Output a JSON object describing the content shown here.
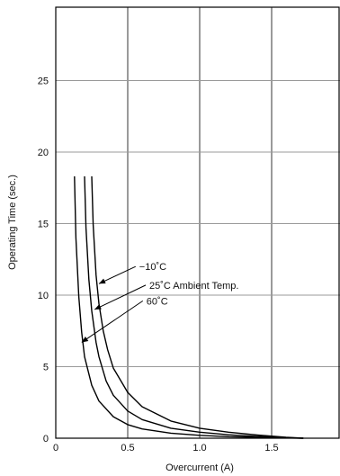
{
  "chart_data": {
    "type": "line",
    "title": "",
    "xlabel": "Overcurrent (A)",
    "ylabel": "Operating Time (sec.)",
    "xlim": [
      0,
      2.0
    ],
    "ylim": [
      0,
      30
    ],
    "x_ticks": [
      0,
      0.5,
      1.0,
      1.5
    ],
    "x_tick_labels": [
      "0",
      "0.5",
      "1.0",
      "1.5"
    ],
    "y_ticks": [
      0,
      5,
      10,
      15,
      20,
      25
    ],
    "y_tick_labels": [
      "0",
      "5",
      "10",
      "15",
      "20",
      "25"
    ],
    "grid": true,
    "legend": "none",
    "series": [
      {
        "name": "60°C",
        "x": [
          0.13,
          0.14,
          0.16,
          0.18,
          0.2,
          0.25,
          0.3,
          0.4,
          0.5,
          0.6,
          0.8,
          1.0,
          1.2,
          1.4,
          1.6,
          1.72
        ],
        "y": [
          18.3,
          14.0,
          9.9,
          7.4,
          5.7,
          3.7,
          2.6,
          1.5,
          0.95,
          0.65,
          0.35,
          0.2,
          0.11,
          0.06,
          0.02,
          0.0
        ]
      },
      {
        "name": "25°C Ambient Temp.",
        "x": [
          0.2,
          0.21,
          0.23,
          0.25,
          0.28,
          0.3,
          0.35,
          0.4,
          0.5,
          0.6,
          0.8,
          1.0,
          1.2,
          1.4,
          1.6,
          1.72
        ],
        "y": [
          18.3,
          14.7,
          11.1,
          8.9,
          6.7,
          5.7,
          4.0,
          3.0,
          1.9,
          1.3,
          0.7,
          0.42,
          0.24,
          0.12,
          0.04,
          0.0
        ]
      },
      {
        "name": "-10°C",
        "x": [
          0.25,
          0.26,
          0.28,
          0.3,
          0.33,
          0.36,
          0.4,
          0.5,
          0.6,
          0.8,
          1.0,
          1.2,
          1.4,
          1.6,
          1.72
        ],
        "y": [
          18.3,
          14.9,
          11.4,
          9.4,
          7.5,
          6.2,
          4.9,
          3.2,
          2.2,
          1.2,
          0.7,
          0.42,
          0.22,
          0.06,
          0.0
        ]
      }
    ],
    "annotations": [
      {
        "text": "−10˚C",
        "point": [
          0.3,
          10.8
        ],
        "label_at": [
          0.58,
          12.0
        ]
      },
      {
        "text": "25˚C Ambient Temp.",
        "point": [
          0.27,
          9.0
        ],
        "label_at": [
          0.65,
          10.7
        ]
      },
      {
        "text": "60˚C",
        "point": [
          0.18,
          6.7
        ],
        "label_at": [
          0.63,
          9.6
        ]
      }
    ]
  }
}
